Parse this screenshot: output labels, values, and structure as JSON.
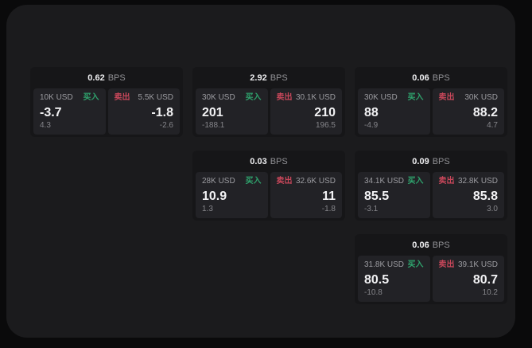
{
  "labels": {
    "bps": "BPS",
    "buy": "买入",
    "sell": "卖出"
  },
  "colors": {
    "buy_green": "#2fa36d",
    "sell_red": "#c8475a",
    "window_bg": "#1b1b1d",
    "card_bg": "#161618",
    "panel_bg": "#222226"
  },
  "cards": [
    {
      "bps": "0.62",
      "buy": {
        "notional": "10K USD",
        "price": "-3.7",
        "delta": "4.3"
      },
      "sell": {
        "notional": "5.5K USD",
        "price": "-1.8",
        "delta": "-2.6"
      }
    },
    {
      "bps": "2.92",
      "buy": {
        "notional": "30K USD",
        "price": "201",
        "delta": "-188.1"
      },
      "sell": {
        "notional": "30.1K USD",
        "price": "210",
        "delta": "196.5"
      }
    },
    {
      "bps": "0.06",
      "buy": {
        "notional": "30K USD",
        "price": "88",
        "delta": "-4.9"
      },
      "sell": {
        "notional": "30K USD",
        "price": "88.2",
        "delta": "4.7"
      }
    },
    {
      "bps": "0.03",
      "buy": {
        "notional": "28K USD",
        "price": "10.9",
        "delta": "1.3"
      },
      "sell": {
        "notional": "32.6K USD",
        "price": "11",
        "delta": "-1.8"
      }
    },
    {
      "bps": "0.09",
      "buy": {
        "notional": "34.1K USD",
        "price": "85.5",
        "delta": "-3.1"
      },
      "sell": {
        "notional": "32.8K USD",
        "price": "85.8",
        "delta": "3.0"
      }
    },
    {
      "bps": "0.06",
      "buy": {
        "notional": "31.8K USD",
        "price": "80.5",
        "delta": "-10.8"
      },
      "sell": {
        "notional": "39.1K USD",
        "price": "80.7",
        "delta": "10.2"
      }
    }
  ]
}
